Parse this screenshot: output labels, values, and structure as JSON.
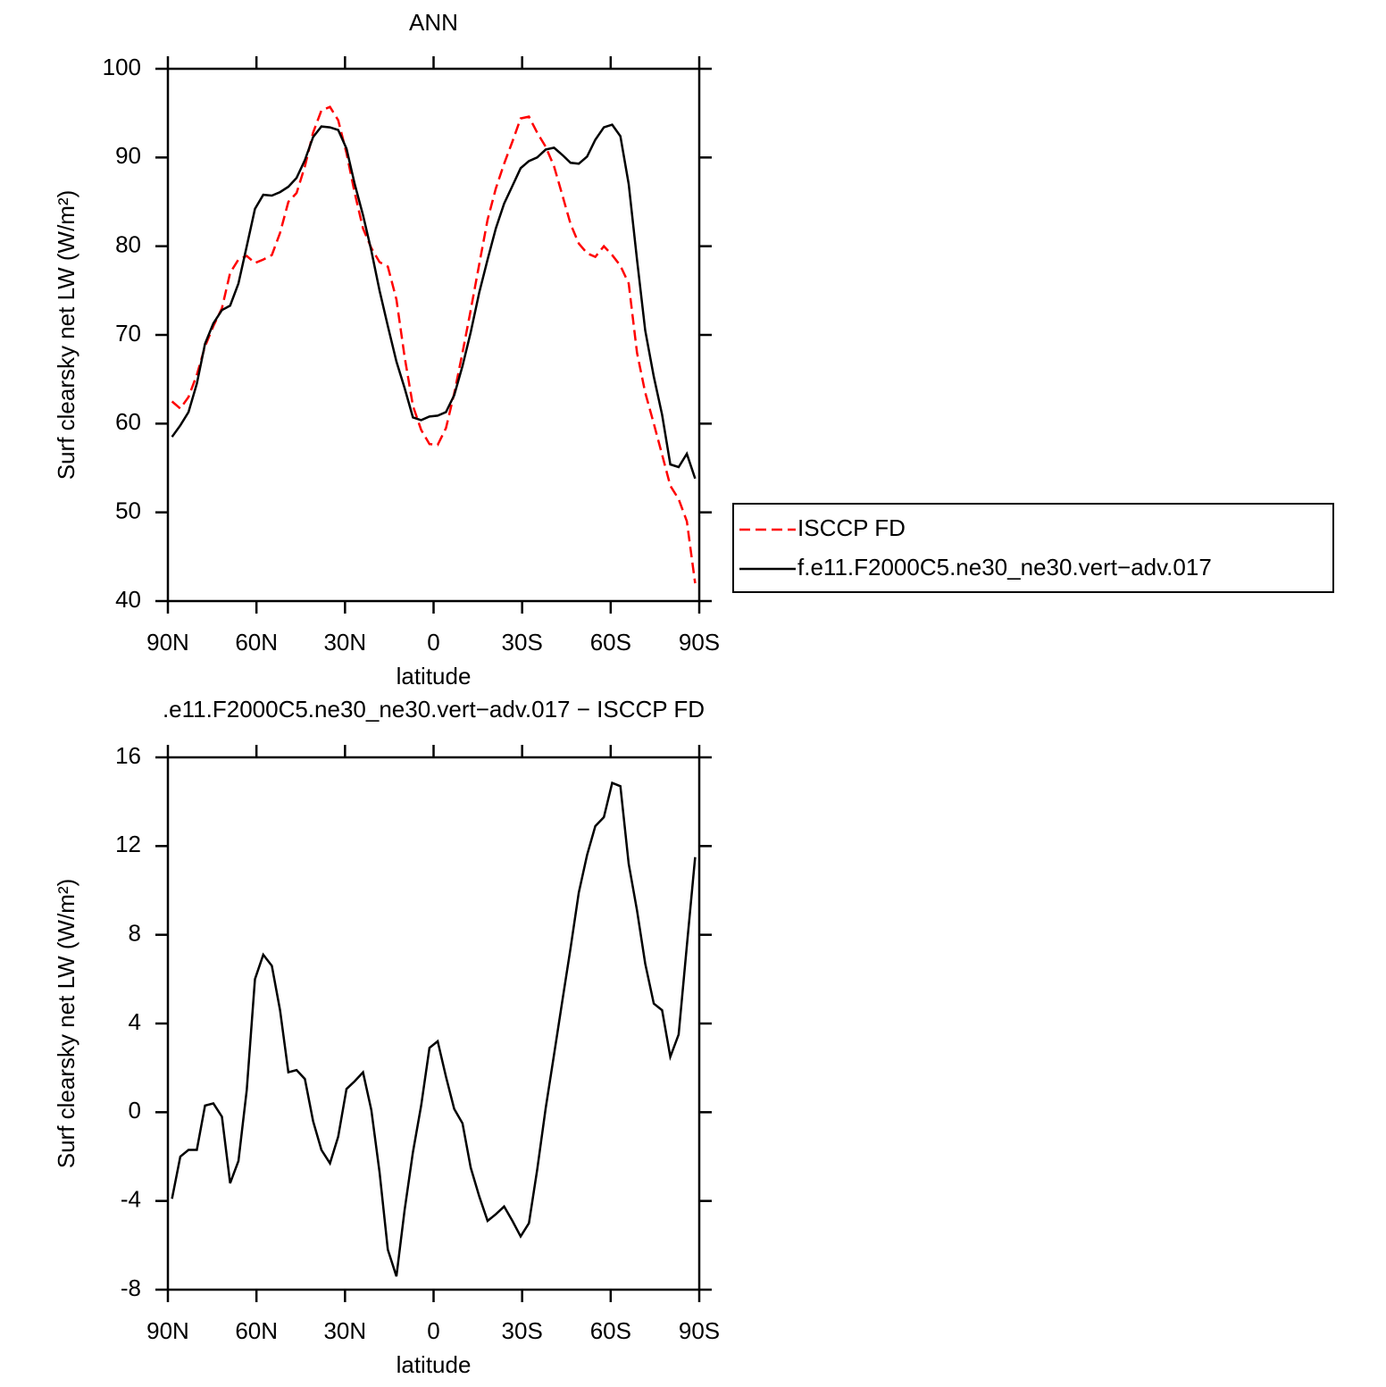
{
  "chart_data": [
    {
      "type": "line",
      "title": "ANN",
      "x_label": "latitude",
      "y_label": "Surf clearsky net LW (W/m²)",
      "x": [
        88.6,
        85.8,
        83.0,
        80.2,
        77.4,
        74.6,
        71.7,
        68.9,
        66.1,
        63.3,
        60.5,
        57.7,
        54.8,
        52.0,
        49.2,
        46.4,
        43.6,
        40.8,
        38.0,
        35.1,
        32.3,
        29.5,
        26.7,
        23.9,
        21.1,
        18.3,
        15.5,
        12.6,
        9.8,
        7.0,
        4.2,
        1.4,
        -1.4,
        -4.2,
        -7.0,
        -9.8,
        -12.6,
        -15.5,
        -18.3,
        -21.1,
        -23.9,
        -26.7,
        -29.5,
        -32.3,
        -35.1,
        -38.0,
        -40.8,
        -43.6,
        -46.4,
        -49.2,
        -52.0,
        -54.8,
        -57.7,
        -60.5,
        -63.3,
        -66.1,
        -68.9,
        -71.7,
        -74.6,
        -77.4,
        -80.2,
        -83.0,
        -85.8,
        -88.6
      ],
      "series": [
        {
          "name": "ISCCP FD",
          "color": "#ff0000",
          "dashed": true,
          "values": [
            62.5,
            61.7,
            63.0,
            65.5,
            68.7,
            71.0,
            73.0,
            77.0,
            78.5,
            78.9,
            78.1,
            78.5,
            79.0,
            81.5,
            85.0,
            86.0,
            89.0,
            92.8,
            95.3,
            95.7,
            94.2,
            90.5,
            86.0,
            82.0,
            79.8,
            78.2,
            77.7,
            74.0,
            67.5,
            62.0,
            59.3,
            57.7,
            57.6,
            59.5,
            63.4,
            68.0,
            72.8,
            78.0,
            83.0,
            86.5,
            89.3,
            91.8,
            94.4,
            94.6,
            92.8,
            91.2,
            89.0,
            85.8,
            82.5,
            80.3,
            79.2,
            78.8,
            80.0,
            79.0,
            77.8,
            75.8,
            68.0,
            63.5,
            60.0,
            56.5,
            53.0,
            51.5,
            49.0,
            42.0
          ]
        },
        {
          "name": "f.e11.F2000C5.ne30_ne30.vert−adv.017",
          "color": "#000000",
          "dashed": false,
          "values": [
            58.5,
            59.8,
            61.3,
            64.5,
            69.0,
            71.3,
            72.8,
            73.3,
            75.8,
            80.0,
            84.2,
            85.8,
            85.7,
            86.1,
            86.7,
            87.7,
            89.7,
            92.3,
            93.5,
            93.4,
            93.1,
            91.0,
            87.0,
            83.5,
            79.5,
            75.0,
            71.0,
            67.0,
            64.0,
            60.7,
            60.4,
            60.8,
            60.9,
            61.3,
            63.2,
            66.5,
            70.3,
            74.8,
            78.5,
            82.0,
            84.8,
            86.8,
            88.8,
            89.6,
            90.0,
            90.9,
            91.1,
            90.3,
            89.4,
            89.3,
            90.1,
            92.0,
            93.4,
            93.7,
            92.4,
            87.0,
            78.5,
            70.5,
            65.3,
            61.0,
            55.4,
            55.1,
            56.6,
            53.8
          ]
        }
      ],
      "xlim": [
        90,
        -90
      ],
      "xticks": [
        {
          "value": 90,
          "label": "90N"
        },
        {
          "value": 60,
          "label": "60N"
        },
        {
          "value": 30,
          "label": "30N"
        },
        0,
        {
          "value": -30,
          "label": "30S"
        },
        {
          "value": -60,
          "label": "60S"
        },
        {
          "value": -90,
          "label": "90S"
        }
      ],
      "ylim": [
        40,
        100
      ],
      "yticks": [
        40,
        50,
        60,
        70,
        80,
        90,
        100
      ],
      "legend": "right"
    },
    {
      "type": "line",
      "title": ".e11.F2000C5.ne30_ne30.vert−adv.017 − ISCCP FD",
      "x_label": "latitude",
      "y_label": "Surf clearsky net LW (W/m²)",
      "x": [
        88.6,
        85.8,
        83.0,
        80.2,
        77.4,
        74.6,
        71.7,
        68.9,
        66.1,
        63.3,
        60.5,
        57.7,
        54.8,
        52.0,
        49.2,
        46.4,
        43.6,
        40.8,
        38.0,
        35.1,
        32.3,
        29.5,
        26.7,
        23.9,
        21.1,
        18.3,
        15.5,
        12.6,
        9.8,
        7.0,
        4.2,
        1.4,
        -1.4,
        -4.2,
        -7.0,
        -9.8,
        -12.6,
        -15.5,
        -18.3,
        -21.1,
        -23.9,
        -26.7,
        -29.5,
        -32.3,
        -35.1,
        -38.0,
        -40.8,
        -43.6,
        -46.4,
        -49.2,
        -52.0,
        -54.8,
        -57.7,
        -60.5,
        -63.3,
        -66.1,
        -68.9,
        -71.7,
        -74.6,
        -77.4,
        -80.2,
        -83.0,
        -85.8,
        -88.6
      ],
      "series": [
        {
          "color": "#000000",
          "dashed": false,
          "values": [
            -3.9,
            -2.0,
            -1.7,
            -1.7,
            0.3,
            0.4,
            -0.2,
            -3.2,
            -2.2,
            1.0,
            6.0,
            7.1,
            6.6,
            4.6,
            1.8,
            1.9,
            1.5,
            -0.4,
            -1.7,
            -2.3,
            -1.1,
            1.05,
            1.4,
            1.8,
            0.1,
            -2.7,
            -6.2,
            -7.4,
            -4.4,
            -1.8,
            0.3,
            2.9,
            3.2,
            1.6,
            0.15,
            -0.5,
            -2.5,
            -3.8,
            -4.9,
            -4.6,
            -4.25,
            -4.9,
            -5.6,
            -5.0,
            -2.6,
            0.2,
            2.6,
            5.0,
            7.4,
            9.9,
            11.6,
            12.9,
            13.3,
            14.85,
            14.7,
            11.2,
            9.1,
            6.7,
            4.9,
            4.6,
            2.5,
            3.5,
            7.5,
            11.5
          ]
        }
      ],
      "xlim": [
        90,
        -90
      ],
      "xticks": [
        {
          "value": 90,
          "label": "90N"
        },
        {
          "value": 60,
          "label": "60N"
        },
        {
          "value": 30,
          "label": "30N"
        },
        0,
        {
          "value": -30,
          "label": "30S"
        },
        {
          "value": -60,
          "label": "60S"
        },
        {
          "value": -90,
          "label": "90S"
        }
      ],
      "ylim": [
        -8,
        16
      ],
      "yticks": [
        -8,
        -4,
        0,
        4,
        8,
        12,
        16
      ]
    }
  ]
}
